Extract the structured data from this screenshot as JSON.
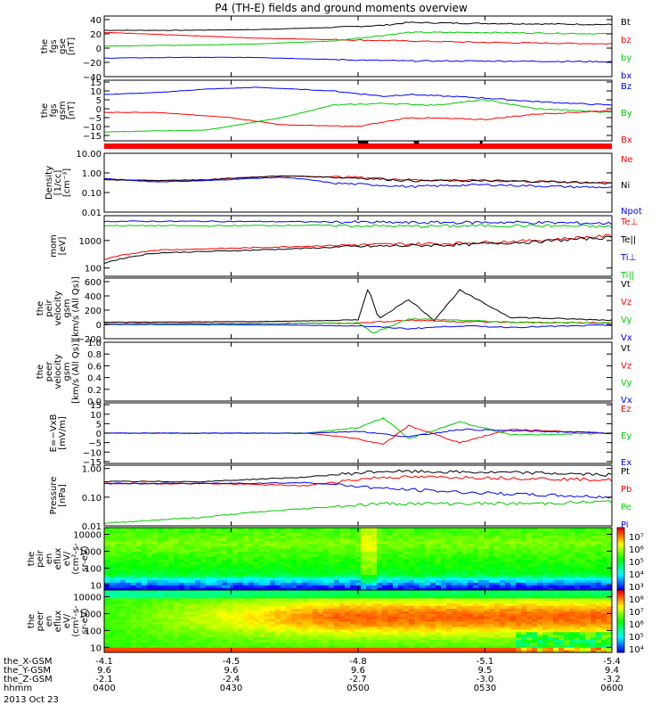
{
  "title": "P4 (TH-E) fields and ground moments overview",
  "footer": {
    "rows": [
      {
        "label": "the_X-GSM",
        "values": [
          "-4.1",
          "-4.5",
          "-4.8",
          "-5.1",
          "-5.4"
        ]
      },
      {
        "label": "the_Y-GSM",
        "values": [
          "9.6",
          "9.6",
          "9.6",
          "9.5",
          "9.4"
        ]
      },
      {
        "label": "the_Z-GSM",
        "values": [
          "-2.1",
          "-2.4",
          "-2.7",
          "-3.0",
          "-3.2"
        ]
      },
      {
        "label": "hhmm",
        "values": [
          "0400",
          "0430",
          "0500",
          "0530",
          "0600"
        ]
      }
    ],
    "date": "2013 Oct 23"
  },
  "chart_data": [
    {
      "type": "line",
      "panel": "fgs-gse",
      "ylabel": [
        "the",
        "fgs",
        "gse",
        "[nT]"
      ],
      "yticks": [
        "40",
        "20",
        "0",
        "−20",
        "−40"
      ],
      "ylim": [
        -40,
        45
      ],
      "yscale": "linear",
      "series": [
        {
          "name": "Bt",
          "color": "#000000",
          "x": [
            0,
            0.15,
            0.3,
            0.45,
            0.55,
            0.6,
            0.7,
            0.85,
            1
          ],
          "y": [
            25,
            25,
            26,
            29,
            32,
            36,
            35,
            34,
            33
          ]
        },
        {
          "name": "bz",
          "color": "#ff0000",
          "x": [
            0,
            0.15,
            0.3,
            0.45,
            0.6,
            0.75,
            1
          ],
          "y": [
            22,
            18,
            14,
            12,
            10,
            8,
            6
          ]
        },
        {
          "name": "by",
          "color": "#00cc00",
          "x": [
            0,
            0.15,
            0.3,
            0.45,
            0.6,
            0.75,
            1
          ],
          "y": [
            3,
            4,
            6,
            10,
            22,
            22,
            20
          ]
        },
        {
          "name": "bx",
          "color": "#0000ff",
          "x": [
            0,
            0.15,
            0.3,
            0.45,
            0.6,
            0.75,
            1
          ],
          "y": [
            -14,
            -13,
            -13,
            -16,
            -18,
            -18,
            -19
          ]
        }
      ]
    },
    {
      "type": "line",
      "panel": "fgs-gsm",
      "ylabel": [
        "the",
        "fgs",
        "gsm",
        "[nT]"
      ],
      "yticks": [
        "15",
        "10",
        "5",
        "0",
        "−5",
        "−10",
        "−15"
      ],
      "ylim": [
        -18,
        16
      ],
      "yscale": "linear",
      "series": [
        {
          "name": "Bz",
          "color": "#0000ff",
          "x": [
            0,
            0.1,
            0.2,
            0.3,
            0.45,
            0.55,
            0.6,
            0.75,
            0.85,
            1
          ],
          "y": [
            8,
            9,
            11,
            12,
            10,
            7,
            8,
            6,
            4,
            2
          ]
        },
        {
          "name": "By",
          "color": "#00cc00",
          "x": [
            0,
            0.2,
            0.35,
            0.45,
            0.55,
            0.65,
            0.75,
            0.85,
            1
          ],
          "y": [
            -13,
            -12,
            -5,
            2,
            3,
            2,
            5,
            0,
            -2
          ]
        },
        {
          "name": "Bx",
          "color": "#ff0000",
          "x": [
            0,
            0.1,
            0.25,
            0.35,
            0.5,
            0.6,
            0.75,
            0.85,
            1
          ],
          "y": [
            -2,
            -2,
            -5,
            -9,
            -10,
            -5,
            -6,
            -3,
            -1
          ]
        }
      ]
    },
    {
      "type": "line",
      "panel": "density",
      "ylabel": [
        "Density",
        "[1/cc]",
        "[cm⁻³]"
      ],
      "yticks": [
        "10.00",
        "1.00",
        "0.10",
        "0.01"
      ],
      "ylim": [
        0.01,
        10
      ],
      "yscale": "log",
      "series": [
        {
          "name": "Ne",
          "color": "#ff0000",
          "x": [
            0,
            0.1,
            0.2,
            0.35,
            0.5,
            0.6,
            0.75,
            0.9,
            1
          ],
          "y": [
            0.5,
            0.4,
            0.45,
            0.7,
            0.6,
            0.45,
            0.4,
            0.35,
            0.3
          ]
        },
        {
          "name": "Ni",
          "color": "#000000",
          "x": [
            0,
            0.1,
            0.2,
            0.35,
            0.5,
            0.6,
            0.75,
            0.9,
            1
          ],
          "y": [
            0.45,
            0.4,
            0.45,
            0.7,
            0.55,
            0.4,
            0.4,
            0.35,
            0.3
          ]
        },
        {
          "name": "Npot",
          "color": "#0000ff",
          "x": [
            0,
            0.1,
            0.2,
            0.35,
            0.45,
            0.6,
            0.75,
            0.9,
            1
          ],
          "y": [
            0.5,
            0.35,
            0.4,
            0.6,
            0.3,
            0.2,
            0.25,
            0.2,
            0.18
          ]
        }
      ]
    },
    {
      "type": "line",
      "panel": "temperature",
      "ylabel": [
        "mom",
        "[eV]"
      ],
      "yticks": [
        "1000",
        "100"
      ],
      "ylim": [
        50,
        8000
      ],
      "yscale": "log",
      "series": [
        {
          "name": "Te⊥",
          "color": "#ff0000",
          "x": [
            0,
            0.1,
            0.3,
            0.5,
            0.7,
            0.85,
            1
          ],
          "y": [
            200,
            450,
            550,
            700,
            800,
            1000,
            1500
          ]
        },
        {
          "name": "Te||",
          "color": "#000000",
          "x": [
            0,
            0.1,
            0.3,
            0.5,
            0.7,
            0.85,
            1
          ],
          "y": [
            150,
            350,
            450,
            600,
            700,
            900,
            1300
          ]
        },
        {
          "name": "Ti⊥",
          "color": "#0000ff",
          "x": [
            0,
            0.2,
            0.4,
            0.6,
            0.8,
            1
          ],
          "y": [
            5000,
            5000,
            4800,
            4500,
            4600,
            4200
          ]
        },
        {
          "name": "Ti||",
          "color": "#00cc00",
          "x": [
            0,
            0.2,
            0.4,
            0.6,
            0.8,
            1
          ],
          "y": [
            3500,
            3400,
            3600,
            3300,
            3500,
            3200
          ]
        }
      ]
    },
    {
      "type": "line",
      "panel": "peir-velocity",
      "ylabel": [
        "the",
        "peir",
        "velocity",
        "gsm",
        "[km/s (All Qs)]"
      ],
      "yticks": [
        "600",
        "400",
        "200",
        "0",
        "−200"
      ],
      "ylim": [
        -200,
        650
      ],
      "yscale": "linear",
      "series": [
        {
          "name": "Vt",
          "color": "#000000",
          "x": [
            0,
            0.3,
            0.5,
            0.52,
            0.54,
            0.6,
            0.65,
            0.7,
            0.8,
            1
          ],
          "y": [
            30,
            40,
            60,
            520,
            80,
            350,
            60,
            480,
            100,
            60
          ]
        },
        {
          "name": "Vz",
          "color": "#ff0000",
          "x": [
            0,
            0.3,
            0.5,
            0.6,
            0.7,
            0.8,
            1
          ],
          "y": [
            10,
            15,
            20,
            60,
            40,
            30,
            20
          ]
        },
        {
          "name": "Vy",
          "color": "#00cc00",
          "x": [
            0,
            0.3,
            0.5,
            0.53,
            0.6,
            0.7,
            0.8,
            1
          ],
          "y": [
            5,
            10,
            20,
            -120,
            80,
            60,
            30,
            20
          ]
        },
        {
          "name": "Vx",
          "color": "#0000ff",
          "x": [
            0,
            0.3,
            0.5,
            0.6,
            0.7,
            0.8,
            1
          ],
          "y": [
            0,
            -5,
            -20,
            -60,
            -20,
            -40,
            -10
          ]
        }
      ]
    },
    {
      "type": "line",
      "panel": "peer-velocity",
      "ylabel": [
        "the",
        "peer",
        "velocity",
        "gsm",
        "[km/s (All Qs)]"
      ],
      "yticks": [
        "1.0",
        "0.8",
        "0.6",
        "0.4",
        "0.2",
        "0.0"
      ],
      "ylim": [
        0,
        1.0
      ],
      "yscale": "linear",
      "series": [
        {
          "name": "Vt",
          "color": "#000000",
          "x": [],
          "y": []
        },
        {
          "name": "Vz",
          "color": "#ff0000",
          "x": [],
          "y": []
        },
        {
          "name": "Vy",
          "color": "#00cc00",
          "x": [],
          "y": []
        },
        {
          "name": "Vx",
          "color": "#0000ff",
          "x": [],
          "y": []
        }
      ]
    },
    {
      "type": "line",
      "panel": "efield",
      "ylabel": [
        "E=−VxB",
        "[mV/m]"
      ],
      "yticks": [
        "15",
        "10",
        "5",
        "0",
        "−5",
        "−10",
        "−15"
      ],
      "ylim": [
        -16,
        16
      ],
      "yscale": "linear",
      "series": [
        {
          "name": "Ez",
          "color": "#ff0000",
          "x": [
            0,
            0.4,
            0.5,
            0.55,
            0.6,
            0.7,
            0.8,
            1
          ],
          "y": [
            0,
            0,
            -3,
            -6,
            4,
            -5,
            2,
            0
          ]
        },
        {
          "name": "Ey",
          "color": "#00cc00",
          "x": [
            0,
            0.4,
            0.5,
            0.55,
            0.6,
            0.7,
            0.8,
            1
          ],
          "y": [
            0,
            0,
            3,
            8,
            -3,
            6,
            -1,
            0
          ]
        },
        {
          "name": "Ex",
          "color": "#0000ff",
          "x": [
            0,
            0.4,
            0.5,
            0.6,
            0.7,
            1
          ],
          "y": [
            0,
            0,
            1,
            -2,
            2,
            0
          ]
        }
      ]
    },
    {
      "type": "line",
      "panel": "pressure",
      "ylabel": [
        "Pressure",
        "[nPa]"
      ],
      "yticks": [
        "1.00",
        "0.10",
        "0.01"
      ],
      "ylim": [
        0.01,
        1.3
      ],
      "yscale": "log",
      "series": [
        {
          "name": "Pt",
          "color": "#000000",
          "x": [
            0,
            0.2,
            0.4,
            0.55,
            0.7,
            0.85,
            1
          ],
          "y": [
            0.35,
            0.35,
            0.5,
            0.8,
            0.75,
            0.7,
            0.6
          ]
        },
        {
          "name": "Pb",
          "color": "#ff0000",
          "x": [
            0,
            0.2,
            0.4,
            0.55,
            0.7,
            0.85,
            1
          ],
          "y": [
            0.3,
            0.3,
            0.25,
            0.5,
            0.5,
            0.45,
            0.4
          ]
        },
        {
          "name": "Pe",
          "color": "#00cc00",
          "x": [
            0,
            0.2,
            0.4,
            0.55,
            0.7,
            0.85,
            1
          ],
          "y": [
            0.012,
            0.02,
            0.04,
            0.06,
            0.06,
            0.06,
            0.07
          ]
        },
        {
          "name": "Pi",
          "color": "#0000ff",
          "x": [
            0,
            0.2,
            0.4,
            0.55,
            0.7,
            0.85,
            1
          ],
          "y": [
            0.3,
            0.3,
            0.32,
            0.2,
            0.15,
            0.12,
            0.1
          ]
        }
      ]
    },
    {
      "type": "heatmap",
      "panel": "peir-eflux",
      "ylabel": [
        "the",
        "peir",
        "en",
        "eflux",
        "eV/",
        "(cm²-s-",
        "sr-eV)"
      ],
      "yticks": [
        "10000",
        "1000",
        "100",
        "10"
      ],
      "ylim": [
        5,
        25000
      ],
      "yscale": "log",
      "colorbar": {
        "labels": [
          "10⁷",
          "10⁶",
          "10⁵",
          "10⁴",
          "10³"
        ],
        "range": [
          1000,
          10000000
        ]
      }
    },
    {
      "type": "heatmap",
      "panel": "peer-eflux",
      "ylabel": [
        "the",
        "peer",
        "en",
        "eflux",
        "eV/",
        "(cm²-s-",
        "sr-eV)"
      ],
      "yticks": [
        "10000",
        "1000",
        "100",
        "10"
      ],
      "ylim": [
        5,
        25000
      ],
      "yscale": "log",
      "colorbar": {
        "labels": [
          "10⁸",
          "10⁷",
          "10⁶",
          "10⁵",
          "10⁴"
        ],
        "range": [
          5000,
          200000000
        ]
      }
    }
  ]
}
